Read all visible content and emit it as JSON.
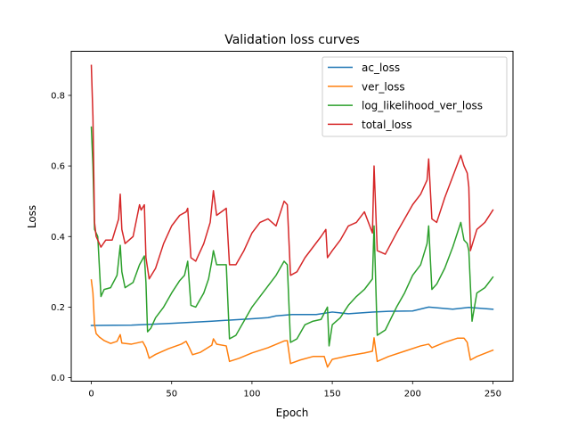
{
  "chart_data": {
    "type": "line",
    "title": "Validation loss curves",
    "xlabel": "Epoch",
    "ylabel": "Loss",
    "xlim": [
      -12.5,
      262.5
    ],
    "ylim": [
      -0.01,
      0.925
    ],
    "xticks": [
      0,
      50,
      100,
      150,
      200,
      250
    ],
    "xtick_labels": [
      "0",
      "50",
      "100",
      "150",
      "200",
      "250"
    ],
    "yticks": [
      0.0,
      0.2,
      0.4,
      0.6,
      0.8
    ],
    "ytick_labels": [
      "0.0",
      "0.2",
      "0.4",
      "0.6",
      "0.8"
    ],
    "grid": false,
    "legend_position": "top-right",
    "series": [
      {
        "name": "ac_loss",
        "color": "#1f77b4",
        "points": [
          [
            0,
            0.148
          ],
          [
            25,
            0.149
          ],
          [
            50,
            0.154
          ],
          [
            75,
            0.16
          ],
          [
            100,
            0.167
          ],
          [
            110,
            0.17
          ],
          [
            115,
            0.175
          ],
          [
            125,
            0.179
          ],
          [
            140,
            0.179
          ],
          [
            150,
            0.186
          ],
          [
            160,
            0.181
          ],
          [
            175,
            0.186
          ],
          [
            185,
            0.188
          ],
          [
            200,
            0.189
          ],
          [
            210,
            0.2
          ],
          [
            225,
            0.194
          ],
          [
            235,
            0.199
          ],
          [
            250,
            0.194
          ]
        ]
      },
      {
        "name": "ver_loss",
        "color": "#ff7f0e",
        "points": [
          [
            0,
            0.277
          ],
          [
            1,
            0.24
          ],
          [
            2,
            0.15
          ],
          [
            3,
            0.125
          ],
          [
            5,
            0.115
          ],
          [
            8,
            0.105
          ],
          [
            12,
            0.097
          ],
          [
            16,
            0.103
          ],
          [
            18,
            0.122
          ],
          [
            19,
            0.098
          ],
          [
            25,
            0.095
          ],
          [
            32,
            0.102
          ],
          [
            34,
            0.085
          ],
          [
            36,
            0.055
          ],
          [
            40,
            0.066
          ],
          [
            48,
            0.082
          ],
          [
            56,
            0.095
          ],
          [
            59,
            0.103
          ],
          [
            61,
            0.085
          ],
          [
            63,
            0.065
          ],
          [
            68,
            0.072
          ],
          [
            75,
            0.092
          ],
          [
            76,
            0.11
          ],
          [
            78,
            0.095
          ],
          [
            84,
            0.09
          ],
          [
            86,
            0.046
          ],
          [
            92,
            0.055
          ],
          [
            100,
            0.07
          ],
          [
            110,
            0.085
          ],
          [
            120,
            0.104
          ],
          [
            122,
            0.105
          ],
          [
            124,
            0.04
          ],
          [
            130,
            0.05
          ],
          [
            138,
            0.06
          ],
          [
            145,
            0.06
          ],
          [
            147,
            0.03
          ],
          [
            150,
            0.052
          ],
          [
            160,
            0.062
          ],
          [
            170,
            0.07
          ],
          [
            175,
            0.075
          ],
          [
            176,
            0.113
          ],
          [
            178,
            0.046
          ],
          [
            185,
            0.06
          ],
          [
            195,
            0.075
          ],
          [
            205,
            0.09
          ],
          [
            210,
            0.095
          ],
          [
            212,
            0.085
          ],
          [
            220,
            0.1
          ],
          [
            228,
            0.112
          ],
          [
            232,
            0.112
          ],
          [
            234,
            0.1
          ],
          [
            236,
            0.05
          ],
          [
            240,
            0.06
          ],
          [
            250,
            0.078
          ]
        ]
      },
      {
        "name": "log_likelihood_ver_loss",
        "color": "#2ca02c",
        "points": [
          [
            0,
            0.71
          ],
          [
            1,
            0.6
          ],
          [
            2,
            0.42
          ],
          [
            4,
            0.4
          ],
          [
            6,
            0.23
          ],
          [
            8,
            0.25
          ],
          [
            12,
            0.255
          ],
          [
            16,
            0.29
          ],
          [
            18,
            0.375
          ],
          [
            19,
            0.3
          ],
          [
            21,
            0.255
          ],
          [
            26,
            0.27
          ],
          [
            30,
            0.32
          ],
          [
            33,
            0.345
          ],
          [
            34,
            0.27
          ],
          [
            35,
            0.13
          ],
          [
            37,
            0.14
          ],
          [
            40,
            0.17
          ],
          [
            45,
            0.2
          ],
          [
            50,
            0.24
          ],
          [
            55,
            0.275
          ],
          [
            58,
            0.29
          ],
          [
            60,
            0.33
          ],
          [
            62,
            0.205
          ],
          [
            65,
            0.2
          ],
          [
            70,
            0.24
          ],
          [
            73,
            0.28
          ],
          [
            75,
            0.33
          ],
          [
            76,
            0.36
          ],
          [
            78,
            0.32
          ],
          [
            84,
            0.32
          ],
          [
            86,
            0.11
          ],
          [
            90,
            0.12
          ],
          [
            95,
            0.16
          ],
          [
            100,
            0.2
          ],
          [
            105,
            0.23
          ],
          [
            110,
            0.26
          ],
          [
            115,
            0.29
          ],
          [
            120,
            0.33
          ],
          [
            122,
            0.32
          ],
          [
            124,
            0.1
          ],
          [
            128,
            0.11
          ],
          [
            133,
            0.15
          ],
          [
            138,
            0.16
          ],
          [
            143,
            0.165
          ],
          [
            147,
            0.2
          ],
          [
            148,
            0.09
          ],
          [
            150,
            0.15
          ],
          [
            155,
            0.17
          ],
          [
            160,
            0.205
          ],
          [
            165,
            0.23
          ],
          [
            170,
            0.25
          ],
          [
            175,
            0.28
          ],
          [
            176,
            0.43
          ],
          [
            178,
            0.12
          ],
          [
            183,
            0.135
          ],
          [
            190,
            0.2
          ],
          [
            195,
            0.24
          ],
          [
            200,
            0.29
          ],
          [
            205,
            0.32
          ],
          [
            209,
            0.38
          ],
          [
            210,
            0.43
          ],
          [
            212,
            0.25
          ],
          [
            215,
            0.265
          ],
          [
            220,
            0.31
          ],
          [
            225,
            0.37
          ],
          [
            230,
            0.44
          ],
          [
            232,
            0.39
          ],
          [
            234,
            0.38
          ],
          [
            235,
            0.36
          ],
          [
            237,
            0.16
          ],
          [
            240,
            0.24
          ],
          [
            245,
            0.255
          ],
          [
            250,
            0.285
          ]
        ]
      },
      {
        "name": "total_loss",
        "color": "#d62728",
        "points": [
          [
            0,
            0.885
          ],
          [
            1,
            0.74
          ],
          [
            2,
            0.44
          ],
          [
            3,
            0.4
          ],
          [
            6,
            0.37
          ],
          [
            9,
            0.39
          ],
          [
            13,
            0.39
          ],
          [
            17,
            0.45
          ],
          [
            18,
            0.52
          ],
          [
            19,
            0.42
          ],
          [
            21,
            0.38
          ],
          [
            26,
            0.4
          ],
          [
            30,
            0.49
          ],
          [
            31,
            0.475
          ],
          [
            33,
            0.49
          ],
          [
            34,
            0.34
          ],
          [
            36,
            0.28
          ],
          [
            40,
            0.31
          ],
          [
            45,
            0.38
          ],
          [
            50,
            0.43
          ],
          [
            55,
            0.46
          ],
          [
            59,
            0.47
          ],
          [
            60,
            0.48
          ],
          [
            62,
            0.34
          ],
          [
            65,
            0.33
          ],
          [
            70,
            0.38
          ],
          [
            74,
            0.44
          ],
          [
            76,
            0.53
          ],
          [
            78,
            0.46
          ],
          [
            84,
            0.48
          ],
          [
            86,
            0.32
          ],
          [
            90,
            0.32
          ],
          [
            95,
            0.36
          ],
          [
            100,
            0.41
          ],
          [
            105,
            0.44
          ],
          [
            110,
            0.45
          ],
          [
            115,
            0.43
          ],
          [
            120,
            0.5
          ],
          [
            122,
            0.49
          ],
          [
            124,
            0.29
          ],
          [
            128,
            0.3
          ],
          [
            133,
            0.34
          ],
          [
            138,
            0.37
          ],
          [
            143,
            0.4
          ],
          [
            146,
            0.42
          ],
          [
            147,
            0.34
          ],
          [
            150,
            0.36
          ],
          [
            155,
            0.39
          ],
          [
            160,
            0.43
          ],
          [
            165,
            0.44
          ],
          [
            170,
            0.47
          ],
          [
            175,
            0.41
          ],
          [
            176,
            0.6
          ],
          [
            178,
            0.36
          ],
          [
            183,
            0.35
          ],
          [
            190,
            0.41
          ],
          [
            195,
            0.45
          ],
          [
            200,
            0.49
          ],
          [
            205,
            0.52
          ],
          [
            209,
            0.56
          ],
          [
            210,
            0.62
          ],
          [
            212,
            0.45
          ],
          [
            215,
            0.44
          ],
          [
            220,
            0.51
          ],
          [
            225,
            0.57
          ],
          [
            230,
            0.63
          ],
          [
            232,
            0.6
          ],
          [
            234,
            0.58
          ],
          [
            235,
            0.54
          ],
          [
            236,
            0.36
          ],
          [
            240,
            0.42
          ],
          [
            245,
            0.44
          ],
          [
            250,
            0.475
          ]
        ]
      }
    ]
  }
}
